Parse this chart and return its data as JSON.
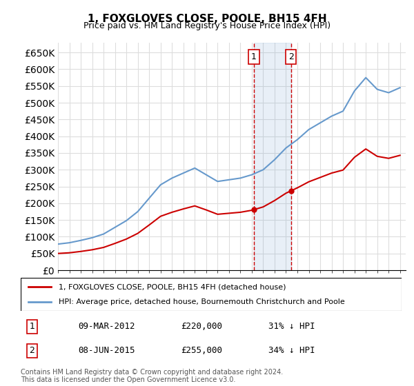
{
  "title": "1, FOXGLOVES CLOSE, POOLE, BH15 4FH",
  "subtitle": "Price paid vs. HM Land Registry's House Price Index (HPI)",
  "legend_line1": "1, FOXGLOVES CLOSE, POOLE, BH15 4FH (detached house)",
  "legend_line2": "HPI: Average price, detached house, Bournemouth Christchurch and Poole",
  "footnote": "Contains HM Land Registry data © Crown copyright and database right 2024.\nThis data is licensed under the Open Government Licence v3.0.",
  "transaction1_label": "1",
  "transaction1_date": "09-MAR-2012",
  "transaction1_price": "£220,000",
  "transaction1_hpi": "31% ↓ HPI",
  "transaction2_label": "2",
  "transaction2_date": "08-JUN-2015",
  "transaction2_price": "£255,000",
  "transaction2_hpi": "34% ↓ HPI",
  "ylim": [
    0,
    680000
  ],
  "yticks": [
    0,
    50000,
    100000,
    150000,
    200000,
    250000,
    300000,
    350000,
    400000,
    450000,
    500000,
    550000,
    600000,
    650000
  ],
  "hpi_color": "#6699cc",
  "property_color": "#cc0000",
  "background_color": "#ffffff",
  "grid_color": "#dddddd",
  "transaction1_x": 2012.18,
  "transaction2_x": 2015.43,
  "hpi_years": [
    1995,
    1996,
    1997,
    1998,
    1999,
    2000,
    2001,
    2002,
    2003,
    2004,
    2005,
    2006,
    2007,
    2008,
    2009,
    2010,
    2011,
    2012,
    2013,
    2014,
    2015,
    2016,
    2017,
    2018,
    2019,
    2020,
    2021,
    2022,
    2023,
    2024,
    2025
  ],
  "hpi_values": [
    78000,
    82000,
    89000,
    97000,
    108000,
    128000,
    148000,
    175000,
    215000,
    255000,
    275000,
    290000,
    305000,
    285000,
    265000,
    270000,
    275000,
    285000,
    300000,
    330000,
    365000,
    390000,
    420000,
    440000,
    460000,
    475000,
    535000,
    575000,
    540000,
    530000,
    545000
  ],
  "property_years": [
    1995,
    1996,
    1997,
    1998,
    1999,
    2000,
    2001,
    2002,
    2003,
    2004,
    2005,
    2006,
    2007,
    2008,
    2009,
    2010,
    2011,
    2012,
    2013,
    2014,
    2015,
    2016,
    2017,
    2018,
    2019,
    2020,
    2021,
    2022,
    2023,
    2024,
    2025
  ],
  "property_values": [
    50000,
    52000,
    56000,
    61000,
    68000,
    80000,
    93000,
    110000,
    135000,
    161000,
    173000,
    183000,
    192000,
    180000,
    167000,
    170000,
    173000,
    179000,
    189000,
    208000,
    230000,
    246000,
    264000,
    277000,
    290000,
    299000,
    337000,
    362000,
    340000,
    334000,
    343000
  ]
}
